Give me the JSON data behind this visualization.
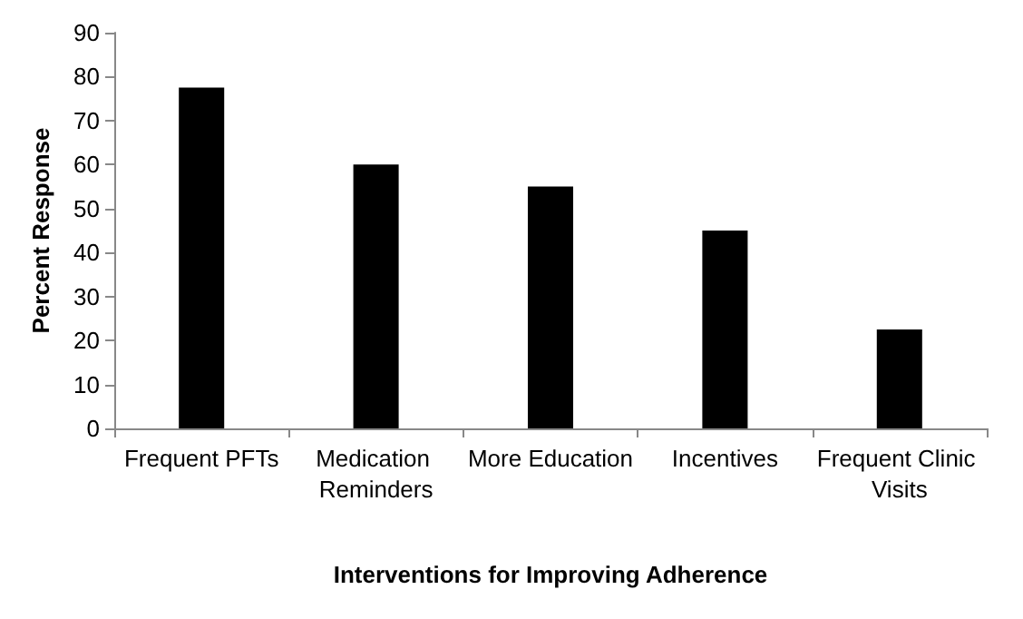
{
  "chart_data": {
    "type": "bar",
    "xlabel": "Interventions for Improving Adherence",
    "ylabel": "Percent Response",
    "categories": [
      "Frequent PFTs",
      "Medication Reminders",
      "More Education",
      "Incentives",
      "Frequent Clinic Visits"
    ],
    "values": [
      77.5,
      60,
      55,
      45,
      22.5
    ],
    "color": "#000000",
    "ylim": [
      0,
      90
    ],
    "yticks": [
      0,
      10,
      20,
      30,
      40,
      50,
      60,
      70,
      80,
      90
    ],
    "grid": false
  }
}
